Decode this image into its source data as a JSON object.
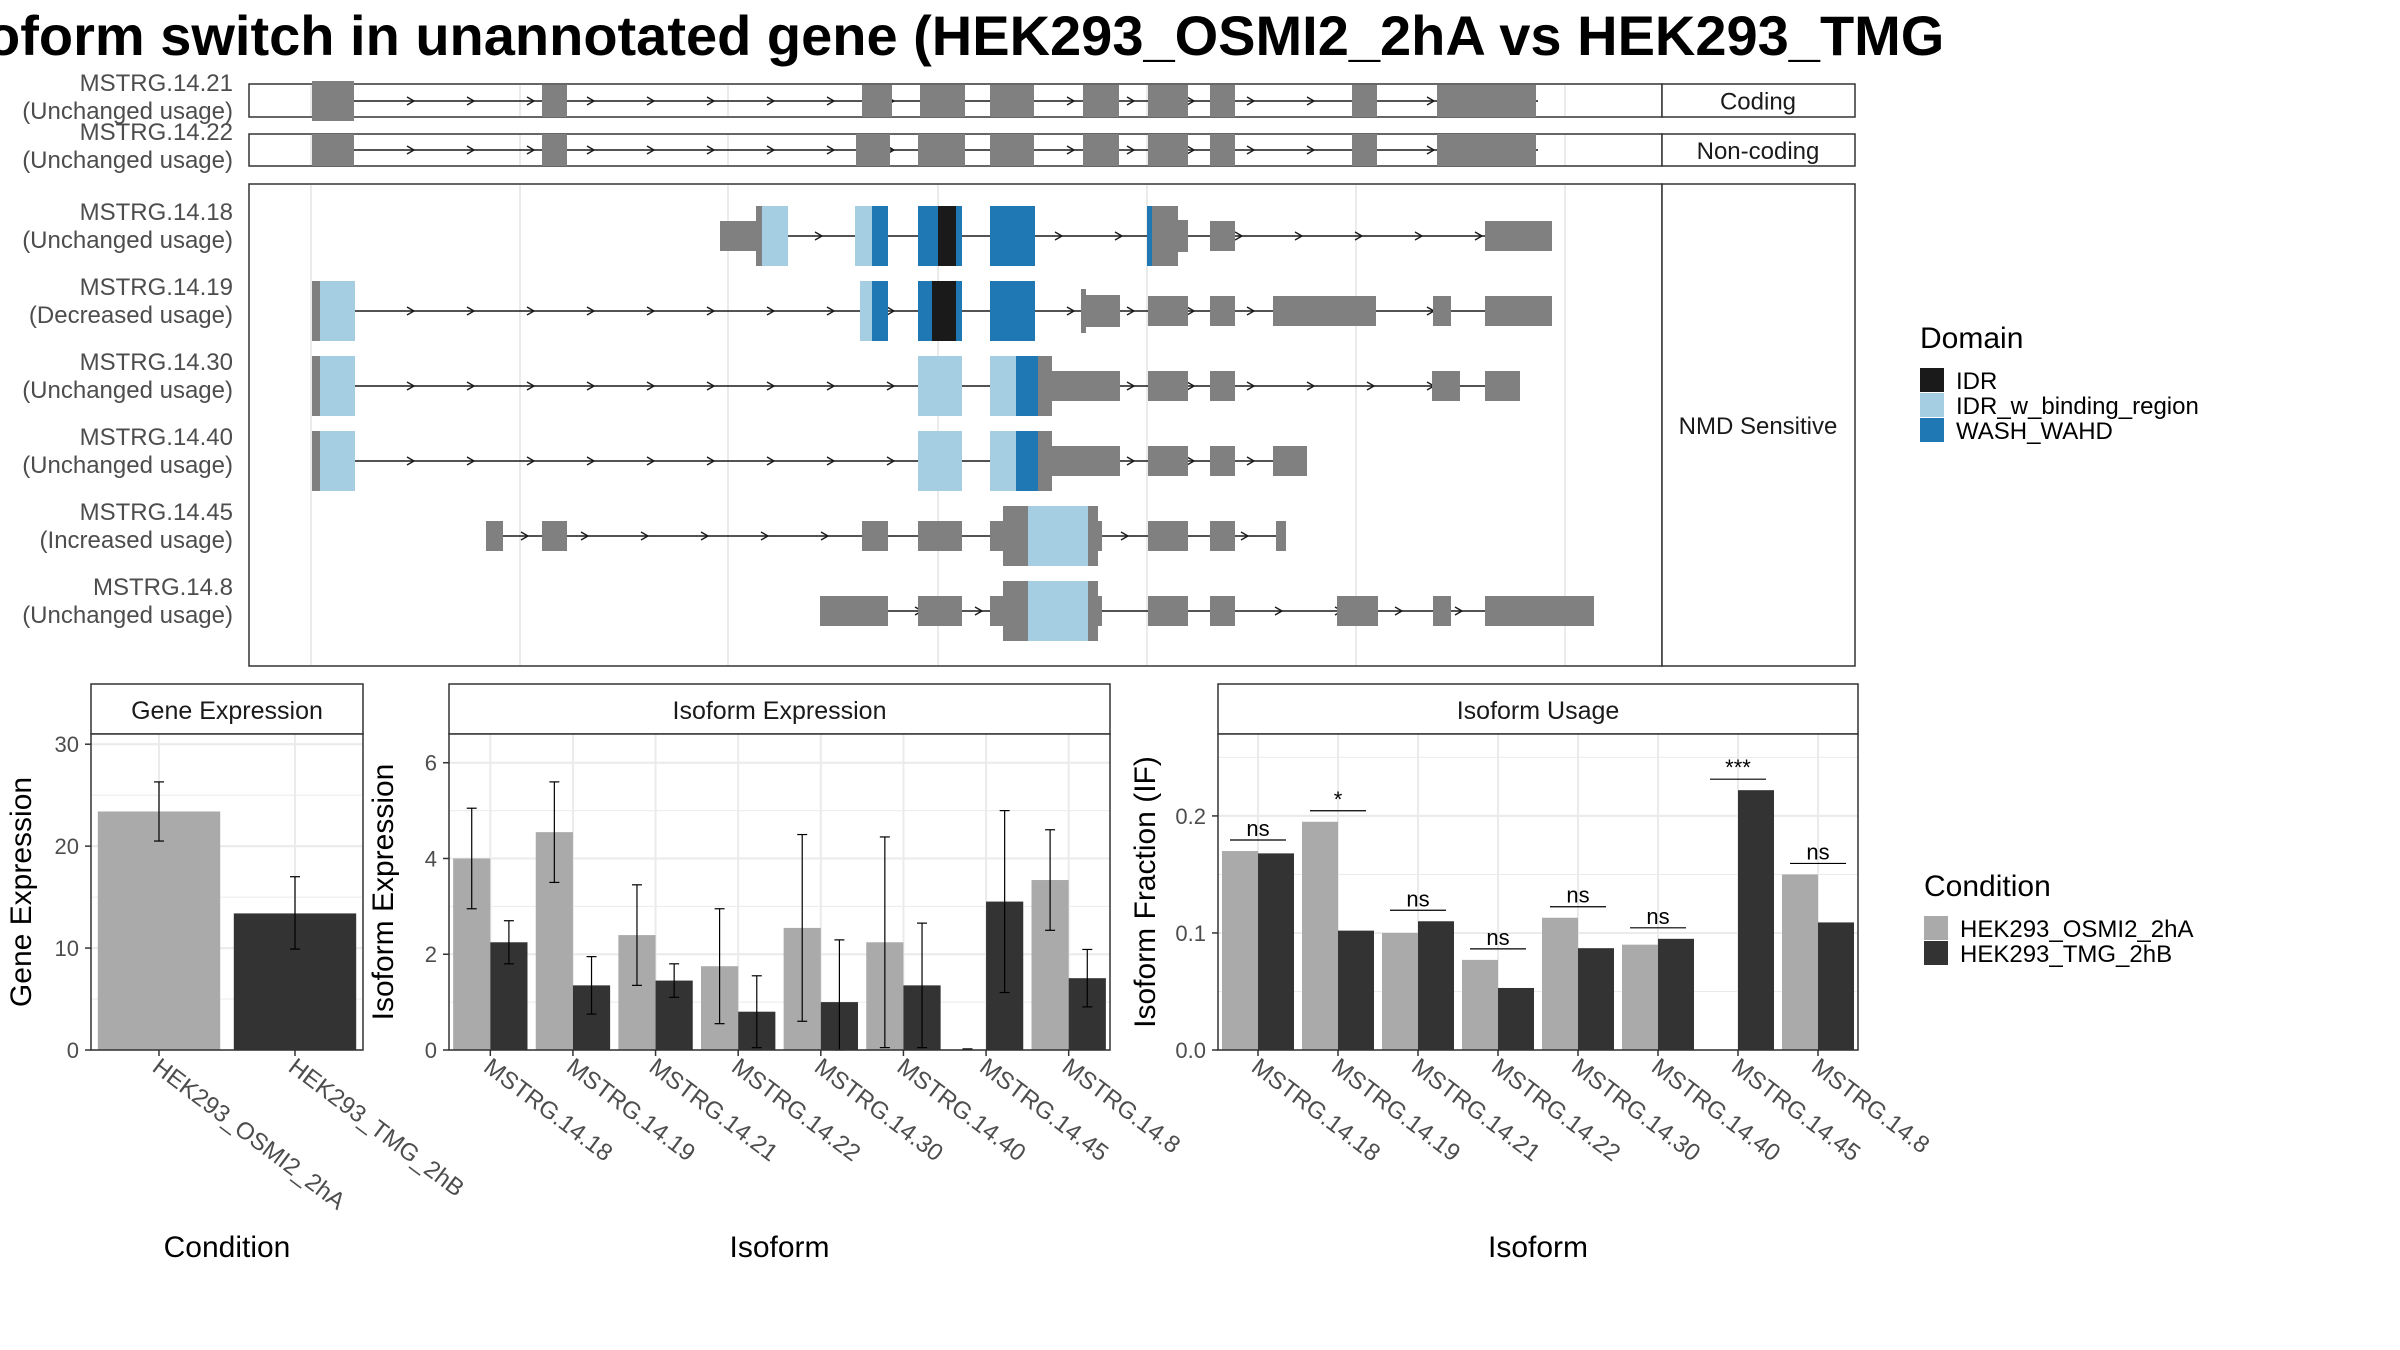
{
  "title": "oform switch in unannotated gene (HEK293_OSMI2_2hA vs HEK293_TMG",
  "colors": {
    "exon": "#808080",
    "idr": "#1a1a1a",
    "idr_binding": "#a6cee3",
    "wash": "#1f78b4",
    "cond_a": "#aaaaaa",
    "cond_b": "#333333"
  },
  "transcripts": {
    "groups": [
      {
        "label": "Coding",
        "tx": [
          "MSTRG.14.21"
        ]
      },
      {
        "label": "Non-coding",
        "tx": [
          "MSTRG.14.22"
        ]
      },
      {
        "label": "NMD Sensitive",
        "tx": [
          "MSTRG.14.18",
          "MSTRG.14.19",
          "MSTRG.14.30",
          "MSTRG.14.40",
          "MSTRG.14.45",
          "MSTRG.14.8"
        ]
      }
    ],
    "rows": [
      {
        "id": "MSTRG.14.21",
        "usage": "(Unchanged usage)"
      },
      {
        "id": "MSTRG.14.22",
        "usage": "(Unchanged usage)"
      },
      {
        "id": "MSTRG.14.18",
        "usage": "(Unchanged usage)"
      },
      {
        "id": "MSTRG.14.19",
        "usage": "(Decreased usage)"
      },
      {
        "id": "MSTRG.14.30",
        "usage": "(Unchanged usage)"
      },
      {
        "id": "MSTRG.14.40",
        "usage": "(Unchanged usage)"
      },
      {
        "id": "MSTRG.14.45",
        "usage": "(Increased usage)"
      },
      {
        "id": "MSTRG.14.8",
        "usage": "(Unchanged usage)"
      }
    ]
  },
  "domain_legend": {
    "title": "Domain",
    "items": [
      {
        "label": "IDR",
        "color": "#1a1a1a"
      },
      {
        "label": "IDR_w_binding_region",
        "color": "#a6cee3"
      },
      {
        "label": "WASH_WAHD",
        "color": "#1f78b4"
      }
    ]
  },
  "condition_legend": {
    "title": "Condition",
    "items": [
      {
        "label": "HEK293_OSMI2_2hA",
        "color": "#aaaaaa"
      },
      {
        "label": "HEK293_TMG_2hB",
        "color": "#333333"
      }
    ]
  },
  "chart_data": [
    {
      "type": "bar",
      "title": "Gene Expression",
      "xlabel": "Condition",
      "ylabel": "Gene Expression",
      "categories": [
        "HEK293_OSMI2_2hA",
        "HEK293_TMG_2hB"
      ],
      "values": [
        23.4,
        13.4
      ],
      "error": [
        [
          20.5,
          26.3
        ],
        [
          9.9,
          17.0
        ]
      ],
      "ylim": [
        0,
        31
      ],
      "yticks": [
        0,
        10,
        20,
        30
      ],
      "grid": true
    },
    {
      "type": "bar",
      "title": "Isoform Expression",
      "xlabel": "Isoform",
      "ylabel": "Isoform Expression",
      "categories": [
        "MSTRG.14.18",
        "MSTRG.14.19",
        "MSTRG.14.21",
        "MSTRG.14.22",
        "MSTRG.14.30",
        "MSTRG.14.40",
        "MSTRG.14.45",
        "MSTRG.14.8"
      ],
      "series": [
        {
          "name": "HEK293_OSMI2_2hA",
          "values": [
            4.0,
            4.55,
            2.4,
            1.75,
            2.55,
            2.25,
            0.0,
            3.55
          ],
          "error": [
            [
              2.95,
              5.05
            ],
            [
              3.5,
              5.6
            ],
            [
              1.35,
              3.45
            ],
            [
              0.55,
              2.95
            ],
            [
              0.6,
              4.5
            ],
            [
              0.05,
              4.45
            ],
            [
              0.0,
              0.0
            ],
            [
              2.5,
              4.6
            ]
          ]
        },
        {
          "name": "HEK293_TMG_2hB",
          "values": [
            2.25,
            1.35,
            1.45,
            0.8,
            1.0,
            1.35,
            3.1,
            1.5
          ],
          "error": [
            [
              1.8,
              2.7
            ],
            [
              0.75,
              1.95
            ],
            [
              1.1,
              1.8
            ],
            [
              0.05,
              1.55
            ],
            [
              0.0,
              2.3
            ],
            [
              0.05,
              2.65
            ],
            [
              1.2,
              5.0
            ],
            [
              0.9,
              2.1
            ]
          ]
        }
      ],
      "ylim": [
        0,
        6.6
      ],
      "yticks": [
        0,
        2,
        4,
        6
      ],
      "grid": true
    },
    {
      "type": "bar",
      "title": "Isoform Usage",
      "xlabel": "Isoform",
      "ylabel": "Isoform Fraction (IF)",
      "categories": [
        "MSTRG.14.18",
        "MSTRG.14.19",
        "MSTRG.14.21",
        "MSTRG.14.22",
        "MSTRG.14.30",
        "MSTRG.14.40",
        "MSTRG.14.45",
        "MSTRG.14.8"
      ],
      "series": [
        {
          "name": "HEK293_OSMI2_2hA",
          "values": [
            0.17,
            0.195,
            0.1,
            0.077,
            0.113,
            0.09,
            0.0,
            0.15
          ]
        },
        {
          "name": "HEK293_TMG_2hB",
          "values": [
            0.168,
            0.102,
            0.11,
            0.053,
            0.087,
            0.095,
            0.222,
            0.109
          ]
        }
      ],
      "significance": [
        "ns",
        "*",
        "ns",
        "ns",
        "ns",
        "ns",
        "***",
        "ns"
      ],
      "ylim": [
        0,
        0.27
      ],
      "yticks": [
        "0.0",
        "0.1",
        "0.2"
      ],
      "grid": true
    }
  ]
}
